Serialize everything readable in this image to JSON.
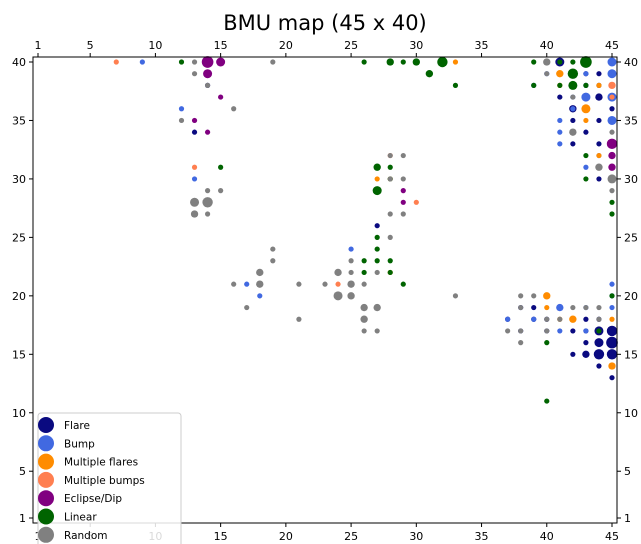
{
  "chart_data": {
    "type": "scatter",
    "title": "BMU map (45 x 40)",
    "xlim": [
      1,
      45
    ],
    "ylim": [
      1,
      40
    ],
    "x_ticks": [
      1,
      5,
      10,
      15,
      20,
      25,
      30,
      35,
      40,
      45
    ],
    "y_ticks": [
      1,
      5,
      10,
      15,
      20,
      25,
      30,
      35,
      40
    ],
    "x_axis_positions": [
      "bottom",
      "top"
    ],
    "y_axis_positions": [
      "left",
      "right"
    ],
    "legend_position": "lower-left",
    "grid": false,
    "marker_size_note": "marker area grows with number of samples mapped to the unit",
    "series": [
      {
        "name": "Flare",
        "color": "#0a0a80",
        "points": [
          [
            41,
            40,
            3
          ],
          [
            45,
            40,
            1
          ],
          [
            41,
            39,
            1
          ],
          [
            43,
            39,
            1
          ],
          [
            44,
            39,
            1
          ],
          [
            42,
            38,
            1
          ],
          [
            43,
            38,
            1
          ],
          [
            44,
            38,
            1
          ],
          [
            41,
            37,
            1
          ],
          [
            44,
            37,
            2
          ],
          [
            42,
            36,
            2
          ],
          [
            43,
            36,
            1
          ],
          [
            45,
            36,
            1
          ],
          [
            42,
            35,
            1
          ],
          [
            44,
            35,
            1
          ],
          [
            43,
            34,
            1
          ],
          [
            42,
            33,
            1
          ],
          [
            44,
            33,
            1
          ],
          [
            44,
            31,
            1
          ],
          [
            44,
            30,
            1
          ],
          [
            14,
            38,
            1
          ],
          [
            13,
            34,
            1
          ],
          [
            27,
            26,
            1
          ],
          [
            38,
            19,
            1
          ],
          [
            39,
            19,
            1
          ],
          [
            41,
            19,
            1
          ],
          [
            37,
            18,
            1
          ],
          [
            39,
            18,
            1
          ],
          [
            40,
            18,
            1
          ],
          [
            42,
            18,
            1
          ],
          [
            43,
            18,
            1
          ],
          [
            44,
            18,
            1
          ],
          [
            38,
            17,
            1
          ],
          [
            40,
            17,
            1
          ],
          [
            42,
            17,
            1
          ],
          [
            43,
            17,
            1
          ],
          [
            44,
            17,
            3
          ],
          [
            45,
            17,
            4
          ],
          [
            43,
            16,
            1
          ],
          [
            44,
            16,
            3
          ],
          [
            45,
            16,
            5
          ],
          [
            42,
            15,
            1
          ],
          [
            43,
            15,
            2
          ],
          [
            44,
            15,
            4
          ],
          [
            45,
            15,
            4
          ],
          [
            44,
            14,
            1
          ],
          [
            45,
            13,
            1
          ]
        ]
      },
      {
        "name": "Bump",
        "color": "#4169e1",
        "points": [
          [
            9,
            40,
            1
          ],
          [
            45,
            40,
            3
          ],
          [
            40,
            39,
            1
          ],
          [
            43,
            39,
            1
          ],
          [
            45,
            39,
            3
          ],
          [
            39,
            38,
            1
          ],
          [
            42,
            37,
            1
          ],
          [
            43,
            37,
            3
          ],
          [
            45,
            37,
            3
          ],
          [
            12,
            36,
            1
          ],
          [
            42,
            36,
            1
          ],
          [
            43,
            36,
            1
          ],
          [
            41,
            35,
            1
          ],
          [
            45,
            35,
            3
          ],
          [
            41,
            34,
            1
          ],
          [
            41,
            33,
            1
          ],
          [
            44,
            32,
            1
          ],
          [
            43,
            31,
            1
          ],
          [
            13,
            30,
            1
          ],
          [
            25,
            24,
            1
          ],
          [
            17,
            21,
            1
          ],
          [
            18,
            20,
            1
          ],
          [
            39,
            18,
            1
          ],
          [
            41,
            19,
            2
          ],
          [
            43,
            19,
            1
          ],
          [
            41,
            17,
            1
          ],
          [
            45,
            19,
            1
          ],
          [
            43,
            17,
            1
          ],
          [
            45,
            20,
            1
          ],
          [
            45,
            21,
            1
          ],
          [
            37,
            18,
            1
          ]
        ]
      },
      {
        "name": "Multiple flares",
        "color": "#ff8c00",
        "points": [
          [
            33,
            40,
            1
          ],
          [
            43,
            40,
            1
          ],
          [
            41,
            39,
            2
          ],
          [
            41,
            38,
            1
          ],
          [
            44,
            38,
            1
          ],
          [
            43,
            36,
            3
          ],
          [
            43,
            35,
            1
          ],
          [
            44,
            32,
            1
          ],
          [
            28,
            30,
            1
          ],
          [
            27,
            30,
            1
          ],
          [
            28,
            22,
            1
          ],
          [
            40,
            20,
            2
          ],
          [
            40,
            19,
            1
          ],
          [
            41,
            18,
            1
          ],
          [
            42,
            18,
            2
          ],
          [
            45,
            18,
            1
          ],
          [
            45,
            14,
            2
          ]
        ]
      },
      {
        "name": "Multiple bumps",
        "color": "#ff7f50",
        "points": [
          [
            7,
            40,
            1
          ],
          [
            45,
            38,
            2
          ],
          [
            45,
            37,
            1
          ],
          [
            13,
            31,
            1
          ],
          [
            30,
            28,
            1
          ],
          [
            28,
            32,
            1
          ],
          [
            24,
            21,
            1
          ],
          [
            40,
            40,
            1
          ]
        ]
      },
      {
        "name": "Eclipse/Dip",
        "color": "#800080",
        "points": [
          [
            14,
            40,
            5
          ],
          [
            15,
            40,
            3
          ],
          [
            14,
            39,
            3
          ],
          [
            15,
            37,
            1
          ],
          [
            14,
            34,
            1
          ],
          [
            13,
            35,
            1
          ],
          [
            45,
            33,
            4
          ],
          [
            45,
            32,
            2
          ],
          [
            45,
            31,
            2
          ],
          [
            29,
            29,
            1
          ],
          [
            29,
            28,
            1
          ]
        ]
      },
      {
        "name": "Linear",
        "color": "#006400",
        "points": [
          [
            12,
            40,
            1
          ],
          [
            26,
            40,
            1
          ],
          [
            28,
            40,
            2
          ],
          [
            29,
            40,
            1
          ],
          [
            30,
            40,
            2
          ],
          [
            32,
            40,
            4
          ],
          [
            31,
            39,
            2
          ],
          [
            33,
            38,
            1
          ],
          [
            39,
            40,
            1
          ],
          [
            41,
            40,
            1
          ],
          [
            42,
            40,
            1
          ],
          [
            43,
            40,
            5
          ],
          [
            42,
            39,
            4
          ],
          [
            39,
            38,
            1
          ],
          [
            41,
            38,
            1
          ],
          [
            42,
            38,
            3
          ],
          [
            43,
            38,
            1
          ],
          [
            43,
            32,
            1
          ],
          [
            43,
            30,
            1
          ],
          [
            45,
            27,
            1
          ],
          [
            45,
            28,
            1
          ],
          [
            15,
            31,
            1
          ],
          [
            27,
            31,
            2
          ],
          [
            28,
            31,
            1
          ],
          [
            28,
            30,
            1
          ],
          [
            27,
            29,
            3
          ],
          [
            27,
            25,
            1
          ],
          [
            27,
            24,
            1
          ],
          [
            26,
            23,
            1
          ],
          [
            27,
            23,
            1
          ],
          [
            28,
            23,
            1
          ],
          [
            26,
            22,
            1
          ],
          [
            28,
            22,
            1
          ],
          [
            29,
            21,
            1
          ],
          [
            40,
            16,
            1
          ],
          [
            45,
            20,
            1
          ],
          [
            44,
            17,
            1
          ],
          [
            40,
            11,
            1
          ]
        ]
      },
      {
        "name": "Random",
        "color": "#808080",
        "points": [
          [
            13,
            40,
            1
          ],
          [
            19,
            40,
            1
          ],
          [
            13,
            39,
            1
          ],
          [
            14,
            38,
            1
          ],
          [
            16,
            36,
            1
          ],
          [
            12,
            35,
            1
          ],
          [
            40,
            40,
            2
          ],
          [
            40,
            39,
            1
          ],
          [
            42,
            37,
            1
          ],
          [
            42,
            34,
            2
          ],
          [
            45,
            34,
            1
          ],
          [
            44,
            31,
            2
          ],
          [
            45,
            30,
            3
          ],
          [
            45,
            29,
            1
          ],
          [
            28,
            32,
            1
          ],
          [
            29,
            32,
            1
          ],
          [
            28,
            30,
            1
          ],
          [
            29,
            30,
            1
          ],
          [
            14,
            29,
            1
          ],
          [
            15,
            29,
            1
          ],
          [
            13,
            28,
            3
          ],
          [
            14,
            28,
            4
          ],
          [
            13,
            27,
            2
          ],
          [
            14,
            27,
            1
          ],
          [
            28,
            27,
            1
          ],
          [
            29,
            27,
            1
          ],
          [
            28,
            25,
            1
          ],
          [
            19,
            24,
            1
          ],
          [
            19,
            23,
            1
          ],
          [
            25,
            23,
            1
          ],
          [
            27,
            22,
            1
          ],
          [
            18,
            22,
            2
          ],
          [
            24,
            22,
            2
          ],
          [
            25,
            22,
            1
          ],
          [
            16,
            21,
            1
          ],
          [
            18,
            21,
            2
          ],
          [
            21,
            21,
            1
          ],
          [
            23,
            21,
            1
          ],
          [
            25,
            21,
            2
          ],
          [
            26,
            21,
            1
          ],
          [
            24,
            20,
            3
          ],
          [
            25,
            20,
            2
          ],
          [
            17,
            19,
            1
          ],
          [
            26,
            19,
            2
          ],
          [
            27,
            19,
            2
          ],
          [
            21,
            18,
            1
          ],
          [
            26,
            18,
            2
          ],
          [
            26,
            17,
            1
          ],
          [
            27,
            17,
            1
          ],
          [
            33,
            20,
            1
          ],
          [
            37,
            17,
            1
          ],
          [
            38,
            17,
            1
          ],
          [
            38,
            16,
            1
          ],
          [
            38,
            20,
            1
          ],
          [
            39,
            20,
            1
          ],
          [
            38,
            19,
            1
          ],
          [
            40,
            18,
            1
          ],
          [
            41,
            18,
            1
          ],
          [
            40,
            17,
            1
          ],
          [
            42,
            19,
            1
          ],
          [
            43,
            19,
            1
          ],
          [
            44,
            18,
            1
          ],
          [
            44,
            19,
            1
          ]
        ]
      }
    ]
  }
}
